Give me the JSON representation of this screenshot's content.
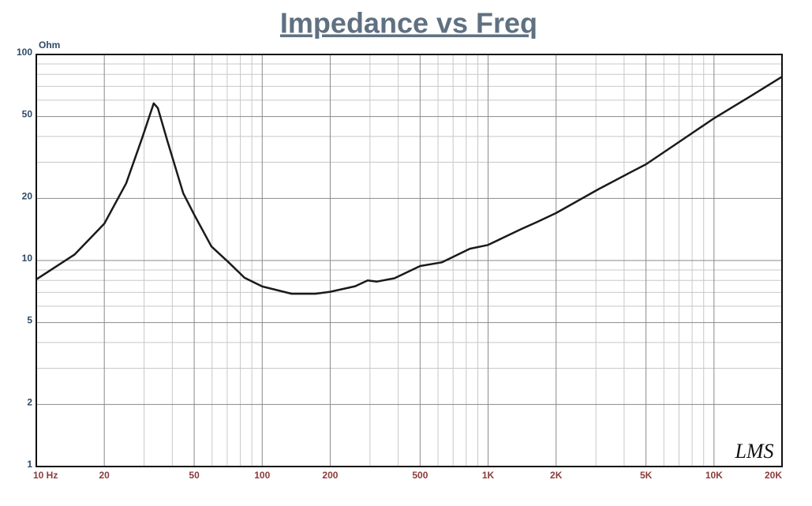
{
  "chart_data": {
    "type": "line",
    "title": "Impedance vs Freq",
    "y_label": "Ohm",
    "logo": "LMS",
    "log_x": true,
    "log_y": true,
    "grid": true,
    "xlim": [
      10,
      20000
    ],
    "ylim": [
      1,
      100
    ],
    "xticks": [
      {
        "value": 10,
        "label": "10  Hz"
      },
      20,
      50,
      100,
      200,
      500,
      {
        "value": 1000,
        "label": "1K"
      },
      {
        "value": 2000,
        "label": "2K"
      },
      {
        "value": 5000,
        "label": "5K"
      },
      {
        "value": 10000,
        "label": "10K"
      },
      {
        "value": 20000,
        "label": "20K"
      }
    ],
    "yticks": [
      1,
      2,
      5,
      10,
      20,
      50,
      100
    ],
    "xminor": [
      30,
      40,
      60,
      70,
      80,
      90,
      300,
      400,
      600,
      700,
      800,
      900,
      3000,
      4000,
      6000,
      7000,
      8000,
      9000
    ],
    "yminor": [
      3,
      4,
      6,
      7,
      8,
      9,
      30,
      40,
      60,
      70,
      80,
      90
    ],
    "x": [
      10,
      14.8,
      20,
      25,
      29.4,
      33.1,
      34.5,
      38,
      44.7,
      50,
      59.6,
      71,
      83.5,
      100,
      135,
      172,
      200,
      258,
      293,
      322,
      385,
      500,
      625,
      830,
      1000,
      1400,
      1650,
      2000,
      3060,
      4300,
      5000,
      7000,
      10000,
      14500,
      20000
    ],
    "series": [
      {
        "name": "Impedance",
        "color": "#1a1a1a",
        "values": [
          8.1,
          10.7,
          15.1,
          23.7,
          39.3,
          57.9,
          55,
          38.2,
          21.2,
          16.7,
          11.7,
          9.8,
          8.24,
          7.48,
          6.9,
          6.9,
          7.05,
          7.5,
          8.0,
          7.9,
          8.2,
          9.4,
          9.8,
          11.4,
          11.9,
          14.2,
          15.4,
          17.0,
          22.1,
          26.9,
          29.3,
          37.6,
          49,
          62.7,
          78
        ]
      }
    ]
  }
}
